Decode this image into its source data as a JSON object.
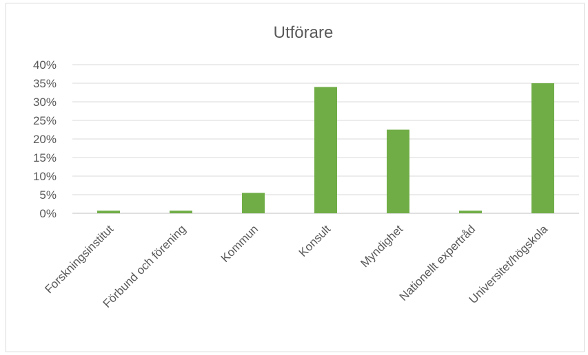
{
  "chart_data": {
    "type": "bar",
    "title": "Utförare",
    "categories": [
      "Forskningsinstitut",
      "Förbund och förening",
      "Kommun",
      "Konsult",
      "Myndighet",
      "Nationellt expertråd",
      "Universitet/högskola"
    ],
    "values": [
      0.7,
      0.7,
      5.5,
      34,
      22.5,
      0.7,
      35
    ],
    "ylim": [
      0,
      40
    ],
    "yticks": [
      "0%",
      "5%",
      "10%",
      "15%",
      "20%",
      "25%",
      "30%",
      "35%",
      "40%"
    ],
    "grid": true,
    "legend": false,
    "colors": {
      "bar": "#70ad47"
    }
  }
}
